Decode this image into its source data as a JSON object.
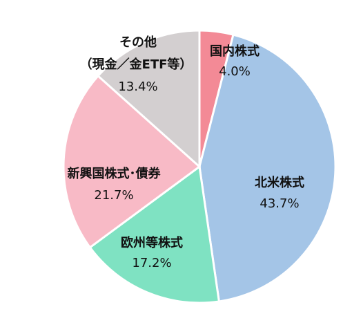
{
  "chart_data": {
    "type": "pie",
    "categories": [
      "国内株式",
      "北米株式",
      "欧州等株式",
      "新興国株式･債券",
      [
        "その他",
        "（現金／金ETF等）"
      ]
    ],
    "values": [
      4.0,
      43.7,
      17.2,
      21.7,
      13.4
    ],
    "value_labels": [
      "4.0%",
      "43.7%",
      "17.2%",
      "21.7%",
      "13.4%"
    ],
    "colors": [
      "#f38a96",
      "#a4c5e7",
      "#7fe2c2",
      "#f8bac6",
      "#d3cfd0"
    ]
  }
}
